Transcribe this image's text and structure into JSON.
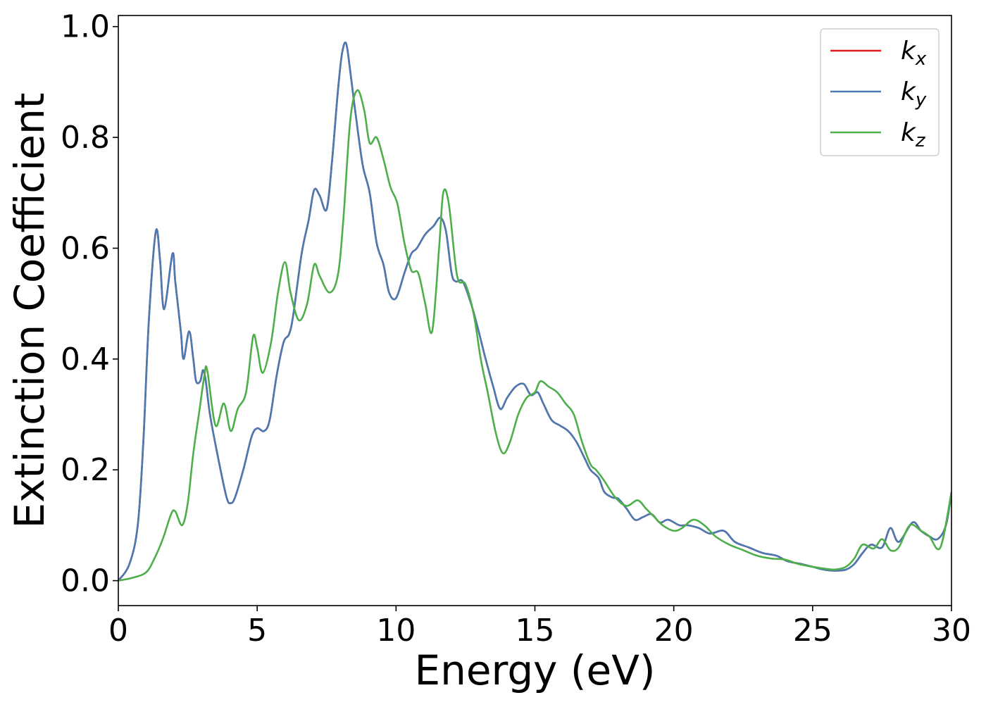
{
  "chart_data": {
    "type": "line",
    "title": "",
    "xlabel": "Energy (eV)",
    "ylabel": "Extinction Coefficient",
    "xlim": [
      0,
      30
    ],
    "ylim": [
      -0.045,
      1.02
    ],
    "xticks": [
      0,
      5,
      10,
      15,
      20,
      25,
      30
    ],
    "xtick_labels": [
      "0",
      "5",
      "10",
      "15",
      "20",
      "25",
      "30"
    ],
    "yticks": [
      0.0,
      0.2,
      0.4,
      0.6,
      0.8,
      1.0
    ],
    "ytick_labels": [
      "0.0",
      "0.2",
      "0.4",
      "0.6",
      "0.8",
      "1.0"
    ],
    "grid": false,
    "legend_position": "top-right",
    "series": [
      {
        "name": "k_x",
        "label_main": "k",
        "label_sub": "x",
        "color": "#e41a1c",
        "x": [
          0,
          0.4,
          0.7,
          0.9,
          1.1,
          1.35,
          1.5,
          1.65,
          1.95,
          2.05,
          2.25,
          2.35,
          2.55,
          2.7,
          2.8,
          2.95,
          3.05,
          3.15,
          3.3,
          3.6,
          3.9,
          4.05,
          4.2,
          4.5,
          4.8,
          5.0,
          5.25,
          5.45,
          5.7,
          5.95,
          6.15,
          6.3,
          6.6,
          6.85,
          7.05,
          7.25,
          7.5,
          7.7,
          7.9,
          8.05,
          8.2,
          8.35,
          8.55,
          8.8,
          9.05,
          9.3,
          9.55,
          9.75,
          10.0,
          10.3,
          10.55,
          10.75,
          11.05,
          11.35,
          11.6,
          11.8,
          12.0,
          12.15,
          12.4,
          12.7,
          12.95,
          13.2,
          13.5,
          13.75,
          14.0,
          14.3,
          14.6,
          14.85,
          15.1,
          15.3,
          15.6,
          15.9,
          16.2,
          16.5,
          16.8,
          17.0,
          17.3,
          17.5,
          17.8,
          18.0,
          18.3,
          18.6,
          18.9,
          19.2,
          19.5,
          19.8,
          20.2,
          20.5,
          20.9,
          21.3,
          21.8,
          22.2,
          22.7,
          23.2,
          23.7,
          24.1,
          24.6,
          25.0,
          25.4,
          25.8,
          26.2,
          26.5,
          26.8,
          27.1,
          27.5,
          27.8,
          28.1,
          28.6,
          28.9,
          29.2,
          29.5,
          29.8,
          30.0
        ],
        "y": [
          0.0,
          0.03,
          0.1,
          0.25,
          0.47,
          0.63,
          0.58,
          0.49,
          0.59,
          0.54,
          0.45,
          0.4,
          0.45,
          0.4,
          0.36,
          0.36,
          0.38,
          0.36,
          0.3,
          0.22,
          0.15,
          0.14,
          0.15,
          0.2,
          0.26,
          0.275,
          0.27,
          0.29,
          0.37,
          0.43,
          0.445,
          0.48,
          0.59,
          0.65,
          0.705,
          0.695,
          0.67,
          0.76,
          0.88,
          0.95,
          0.97,
          0.92,
          0.84,
          0.75,
          0.7,
          0.61,
          0.57,
          0.52,
          0.51,
          0.555,
          0.59,
          0.6,
          0.625,
          0.64,
          0.655,
          0.63,
          0.555,
          0.54,
          0.54,
          0.5,
          0.455,
          0.405,
          0.35,
          0.31,
          0.33,
          0.35,
          0.355,
          0.335,
          0.34,
          0.32,
          0.29,
          0.28,
          0.27,
          0.25,
          0.22,
          0.2,
          0.185,
          0.16,
          0.15,
          0.148,
          0.13,
          0.11,
          0.115,
          0.12,
          0.105,
          0.11,
          0.1,
          0.1,
          0.095,
          0.085,
          0.09,
          0.07,
          0.06,
          0.05,
          0.045,
          0.035,
          0.03,
          0.025,
          0.02,
          0.018,
          0.02,
          0.03,
          0.05,
          0.065,
          0.06,
          0.095,
          0.07,
          0.105,
          0.09,
          0.08,
          0.075,
          0.1,
          0.16
        ]
      },
      {
        "name": "k_y",
        "label_main": "k",
        "label_sub": "y",
        "color": "#4a7ab3",
        "x": [
          0,
          0.4,
          0.7,
          0.9,
          1.1,
          1.35,
          1.5,
          1.65,
          1.95,
          2.05,
          2.25,
          2.35,
          2.55,
          2.7,
          2.8,
          2.95,
          3.05,
          3.15,
          3.3,
          3.6,
          3.9,
          4.05,
          4.2,
          4.5,
          4.8,
          5.0,
          5.25,
          5.45,
          5.7,
          5.95,
          6.15,
          6.3,
          6.6,
          6.85,
          7.05,
          7.25,
          7.5,
          7.7,
          7.9,
          8.05,
          8.2,
          8.35,
          8.55,
          8.8,
          9.05,
          9.3,
          9.55,
          9.75,
          10.0,
          10.3,
          10.55,
          10.75,
          11.05,
          11.35,
          11.6,
          11.8,
          12.0,
          12.15,
          12.4,
          12.7,
          12.95,
          13.2,
          13.5,
          13.75,
          14.0,
          14.3,
          14.6,
          14.85,
          15.1,
          15.3,
          15.6,
          15.9,
          16.2,
          16.5,
          16.8,
          17.0,
          17.3,
          17.5,
          17.8,
          18.0,
          18.3,
          18.6,
          18.9,
          19.2,
          19.5,
          19.8,
          20.2,
          20.5,
          20.9,
          21.3,
          21.8,
          22.2,
          22.7,
          23.2,
          23.7,
          24.1,
          24.6,
          25.0,
          25.4,
          25.8,
          26.2,
          26.5,
          26.8,
          27.1,
          27.5,
          27.8,
          28.1,
          28.6,
          28.9,
          29.2,
          29.5,
          29.8,
          30.0
        ],
        "y": [
          0.0,
          0.03,
          0.1,
          0.25,
          0.47,
          0.63,
          0.58,
          0.49,
          0.59,
          0.54,
          0.45,
          0.4,
          0.45,
          0.4,
          0.36,
          0.36,
          0.38,
          0.36,
          0.3,
          0.22,
          0.15,
          0.14,
          0.15,
          0.2,
          0.26,
          0.275,
          0.27,
          0.29,
          0.37,
          0.43,
          0.445,
          0.48,
          0.59,
          0.65,
          0.705,
          0.695,
          0.67,
          0.76,
          0.88,
          0.95,
          0.97,
          0.92,
          0.84,
          0.75,
          0.7,
          0.61,
          0.57,
          0.52,
          0.51,
          0.555,
          0.59,
          0.6,
          0.625,
          0.64,
          0.655,
          0.63,
          0.555,
          0.54,
          0.54,
          0.5,
          0.455,
          0.405,
          0.35,
          0.31,
          0.33,
          0.35,
          0.355,
          0.335,
          0.34,
          0.32,
          0.29,
          0.28,
          0.27,
          0.25,
          0.22,
          0.2,
          0.185,
          0.16,
          0.15,
          0.148,
          0.13,
          0.11,
          0.115,
          0.12,
          0.105,
          0.11,
          0.1,
          0.1,
          0.095,
          0.085,
          0.09,
          0.07,
          0.06,
          0.05,
          0.045,
          0.035,
          0.03,
          0.025,
          0.02,
          0.018,
          0.02,
          0.03,
          0.05,
          0.065,
          0.06,
          0.095,
          0.07,
          0.105,
          0.09,
          0.08,
          0.075,
          0.1,
          0.16
        ]
      },
      {
        "name": "k_z",
        "label_main": "k",
        "label_sub": "z",
        "color": "#4daf4a",
        "x": [
          0,
          0.5,
          1.0,
          1.3,
          1.6,
          1.9,
          2.05,
          2.3,
          2.5,
          2.7,
          2.9,
          3.1,
          3.2,
          3.5,
          3.8,
          4.05,
          4.3,
          4.6,
          4.85,
          5.0,
          5.2,
          5.5,
          5.75,
          6.0,
          6.2,
          6.5,
          6.8,
          7.05,
          7.25,
          7.6,
          7.9,
          8.1,
          8.35,
          8.6,
          8.85,
          9.05,
          9.3,
          9.55,
          9.8,
          10.05,
          10.3,
          10.55,
          10.8,
          11.05,
          11.3,
          11.55,
          11.7,
          11.9,
          12.2,
          12.5,
          12.8,
          13.05,
          13.3,
          13.6,
          13.85,
          14.1,
          14.4,
          14.7,
          15.0,
          15.2,
          15.5,
          15.8,
          16.1,
          16.4,
          16.7,
          17.0,
          17.2,
          17.5,
          17.9,
          18.3,
          18.7,
          19.0,
          19.3,
          19.6,
          20.0,
          20.3,
          20.7,
          21.1,
          21.5,
          22.0,
          22.5,
          23.0,
          23.5,
          24.0,
          24.5,
          25.0,
          25.4,
          25.8,
          26.2,
          26.5,
          26.8,
          27.2,
          27.5,
          27.8,
          28.1,
          28.5,
          28.9,
          29.2,
          29.6,
          30.0
        ],
        "y": [
          0.0,
          0.005,
          0.015,
          0.04,
          0.075,
          0.12,
          0.125,
          0.1,
          0.14,
          0.23,
          0.3,
          0.37,
          0.38,
          0.28,
          0.32,
          0.27,
          0.31,
          0.34,
          0.44,
          0.42,
          0.375,
          0.43,
          0.52,
          0.575,
          0.52,
          0.47,
          0.5,
          0.57,
          0.55,
          0.52,
          0.55,
          0.65,
          0.83,
          0.885,
          0.85,
          0.79,
          0.8,
          0.76,
          0.71,
          0.68,
          0.61,
          0.56,
          0.555,
          0.5,
          0.45,
          0.6,
          0.7,
          0.68,
          0.55,
          0.535,
          0.48,
          0.4,
          0.34,
          0.265,
          0.23,
          0.25,
          0.3,
          0.33,
          0.34,
          0.36,
          0.35,
          0.34,
          0.32,
          0.3,
          0.25,
          0.21,
          0.2,
          0.18,
          0.15,
          0.135,
          0.145,
          0.13,
          0.115,
          0.1,
          0.09,
          0.095,
          0.11,
          0.1,
          0.08,
          0.065,
          0.055,
          0.045,
          0.04,
          0.038,
          0.03,
          0.025,
          0.022,
          0.02,
          0.025,
          0.04,
          0.065,
          0.058,
          0.075,
          0.055,
          0.06,
          0.1,
          0.09,
          0.08,
          0.06,
          0.16
        ]
      }
    ]
  }
}
